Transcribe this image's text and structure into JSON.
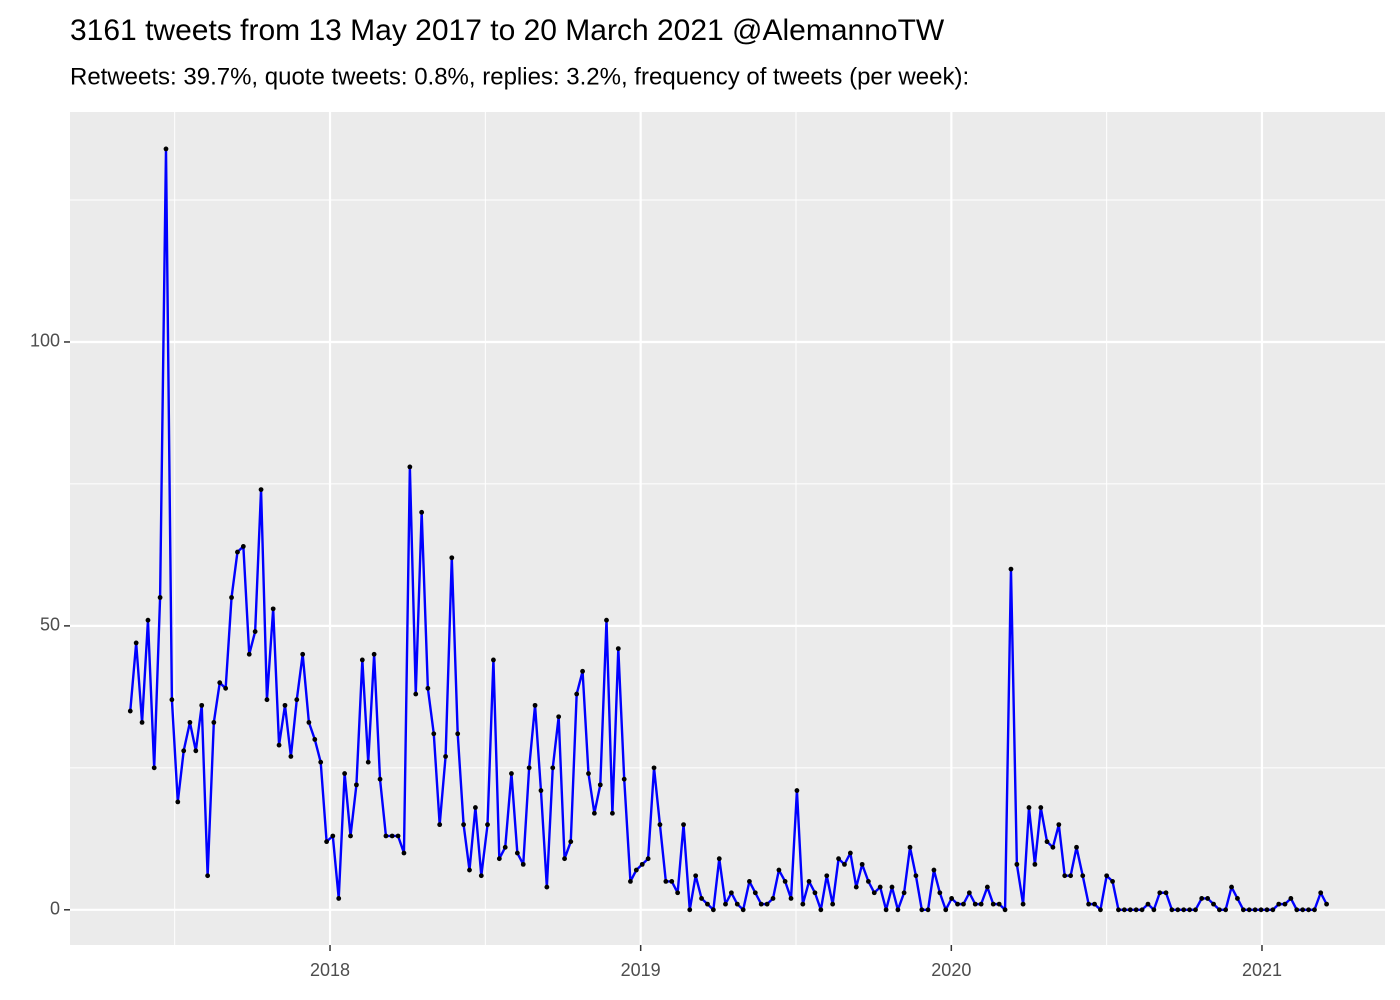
{
  "chart_data": {
    "type": "line",
    "title": "3161 tweets from 13 May 2017 to 20 March 2021 @AlemannoTW",
    "subtitle": "Retweets: 39.7%, quote tweets: 0.8%, replies: 3.2%, frequency of tweets (per week):",
    "x": [
      2017.357,
      2017.376,
      2017.395,
      2017.414,
      2017.434,
      2017.453,
      2017.472,
      2017.491,
      2017.51,
      2017.529,
      2017.549,
      2017.568,
      2017.587,
      2017.606,
      2017.626,
      2017.645,
      2017.664,
      2017.683,
      2017.702,
      2017.721,
      2017.74,
      2017.759,
      2017.778,
      2017.797,
      2017.817,
      2017.836,
      2017.855,
      2017.874,
      2017.893,
      2017.912,
      2017.932,
      2017.951,
      2017.97,
      2017.989,
      2018.009,
      2018.028,
      2018.047,
      2018.066,
      2018.085,
      2018.104,
      2018.123,
      2018.142,
      2018.161,
      2018.18,
      2018.2,
      2018.219,
      2018.238,
      2018.257,
      2018.276,
      2018.295,
      2018.315,
      2018.334,
      2018.353,
      2018.372,
      2018.392,
      2018.411,
      2018.43,
      2018.449,
      2018.468,
      2018.487,
      2018.507,
      2018.526,
      2018.545,
      2018.564,
      2018.584,
      2018.603,
      2018.622,
      2018.641,
      2018.66,
      2018.679,
      2018.698,
      2018.717,
      2018.736,
      2018.755,
      2018.775,
      2018.794,
      2018.813,
      2018.832,
      2018.851,
      2018.87,
      2018.89,
      2018.909,
      2018.928,
      2018.947,
      2018.967,
      2018.986,
      2019.005,
      2019.024,
      2019.043,
      2019.062,
      2019.081,
      2019.1,
      2019.119,
      2019.138,
      2019.158,
      2019.177,
      2019.196,
      2019.215,
      2019.234,
      2019.253,
      2019.273,
      2019.292,
      2019.311,
      2019.33,
      2019.35,
      2019.369,
      2019.388,
      2019.407,
      2019.426,
      2019.445,
      2019.465,
      2019.484,
      2019.503,
      2019.522,
      2019.542,
      2019.561,
      2019.58,
      2019.599,
      2019.618,
      2019.637,
      2019.656,
      2019.675,
      2019.694,
      2019.713,
      2019.733,
      2019.752,
      2019.771,
      2019.79,
      2019.809,
      2019.828,
      2019.848,
      2019.867,
      2019.886,
      2019.905,
      2019.925,
      2019.944,
      2019.963,
      2019.982,
      2020.001,
      2020.02,
      2020.039,
      2020.058,
      2020.077,
      2020.096,
      2020.116,
      2020.135,
      2020.154,
      2020.173,
      2020.192,
      2020.211,
      2020.231,
      2020.25,
      2020.269,
      2020.288,
      2020.308,
      2020.327,
      2020.346,
      2020.365,
      2020.384,
      2020.403,
      2020.423,
      2020.442,
      2020.461,
      2020.48,
      2020.5,
      2020.519,
      2020.538,
      2020.557,
      2020.576,
      2020.595,
      2020.614,
      2020.633,
      2020.652,
      2020.671,
      2020.691,
      2020.71,
      2020.729,
      2020.748,
      2020.767,
      2020.786,
      2020.806,
      2020.825,
      2020.844,
      2020.863,
      2020.883,
      2020.902,
      2020.921,
      2020.94,
      2020.959,
      2020.978,
      2020.997,
      2021.016,
      2021.035,
      2021.054,
      2021.074,
      2021.093,
      2021.112,
      2021.131,
      2021.15,
      2021.169,
      2021.189,
      2021.208
    ],
    "series": [
      {
        "color": "#0000ff",
        "point_color": "#000000",
        "values": [
          35,
          47,
          33,
          51,
          25,
          55,
          134,
          37,
          19,
          28,
          33,
          28,
          36,
          6,
          33,
          40,
          39,
          55,
          63,
          64,
          45,
          49,
          74,
          37,
          53,
          29,
          36,
          27,
          37,
          45,
          33,
          30,
          26,
          12,
          13,
          2,
          24,
          13,
          22,
          44,
          26,
          45,
          23,
          13,
          13,
          13,
          10,
          78,
          38,
          70,
          39,
          31,
          15,
          27,
          62,
          31,
          15,
          7,
          18,
          6,
          15,
          44,
          9,
          11,
          24,
          10,
          8,
          25,
          36,
          21,
          4,
          25,
          34,
          9,
          12,
          38,
          42,
          24,
          17,
          22,
          51,
          17,
          46,
          23,
          5,
          7,
          8,
          9,
          25,
          15,
          5,
          5,
          3,
          15,
          0,
          6,
          2,
          1,
          0,
          9,
          1,
          3,
          1,
          0,
          5,
          3,
          1,
          1,
          2,
          7,
          5,
          2,
          21,
          1,
          5,
          3,
          0,
          6,
          1,
          9,
          8,
          10,
          4,
          8,
          5,
          3,
          4,
          0,
          4,
          0,
          3,
          11,
          6,
          0,
          0,
          7,
          3,
          0,
          2,
          1,
          1,
          3,
          1,
          1,
          4,
          1,
          1,
          0,
          60,
          8,
          1,
          18,
          8,
          18,
          12,
          11,
          15,
          6,
          6,
          11,
          6,
          1,
          1,
          0,
          6,
          5,
          0,
          0,
          0,
          0,
          0,
          1,
          0,
          3,
          3,
          0,
          0,
          0,
          0,
          0,
          2,
          2,
          1,
          0,
          0,
          4,
          2,
          0,
          0,
          0,
          0,
          0,
          0,
          1,
          1,
          2,
          0,
          0,
          0,
          0,
          3,
          1
        ]
      }
    ],
    "xlim": [
      2017.163,
      2021.396
    ],
    "xticks": [
      2018,
      2019,
      2020,
      2021
    ],
    "xminorticks": [
      2017.5,
      2018.5,
      2019.5,
      2020.5
    ],
    "ylim": [
      -6.2,
      140.5
    ],
    "yticks": [
      0,
      50,
      100
    ],
    "yminorticks": [
      25,
      75,
      125
    ],
    "grid": true
  }
}
